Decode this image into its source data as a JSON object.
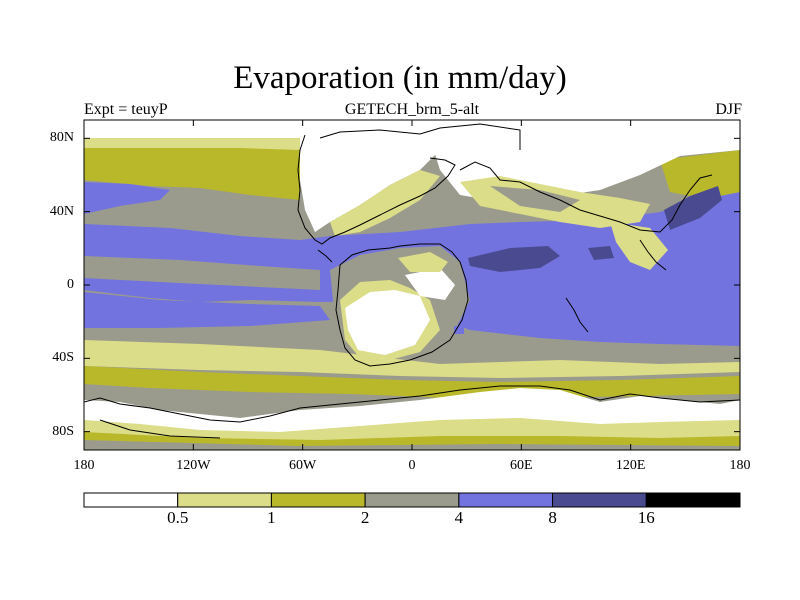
{
  "chart_data": {
    "type": "heatmap",
    "title": "Evaporation (in mm/day)",
    "subtitle_left": "Expt = teuyP",
    "subtitle_center": "GETECH_brm_5-alt",
    "subtitle_right": "DJF",
    "x_ticks": [
      {
        "value": -180,
        "label": "180"
      },
      {
        "value": -120,
        "label": "120W"
      },
      {
        "value": -60,
        "label": "60W"
      },
      {
        "value": 0,
        "label": "0"
      },
      {
        "value": 60,
        "label": "60E"
      },
      {
        "value": 120,
        "label": "120E"
      },
      {
        "value": 180,
        "label": "180"
      }
    ],
    "y_ticks": [
      {
        "value": 80,
        "label": "80N"
      },
      {
        "value": 40,
        "label": "40N"
      },
      {
        "value": 0,
        "label": "0"
      },
      {
        "value": -40,
        "label": "40S"
      },
      {
        "value": -80,
        "label": "80S"
      }
    ],
    "xlim": [
      -180,
      180
    ],
    "ylim": [
      -90,
      90
    ],
    "colorbar": {
      "levels": [
        "0.5",
        "1",
        "2",
        "4",
        "8",
        "16"
      ],
      "colors": [
        "#ffffff",
        "#dcdd88",
        "#b9b82a",
        "#9b9b8d",
        "#7373e0",
        "#4a4a90",
        "#000000"
      ]
    }
  },
  "colors": {
    "c0": "#ffffff",
    "c1": "#dcdd88",
    "c2": "#b9b82a",
    "c3": "#9b9b8d",
    "c4": "#7373e0",
    "c5": "#4a4a90",
    "c6": "#000000"
  }
}
